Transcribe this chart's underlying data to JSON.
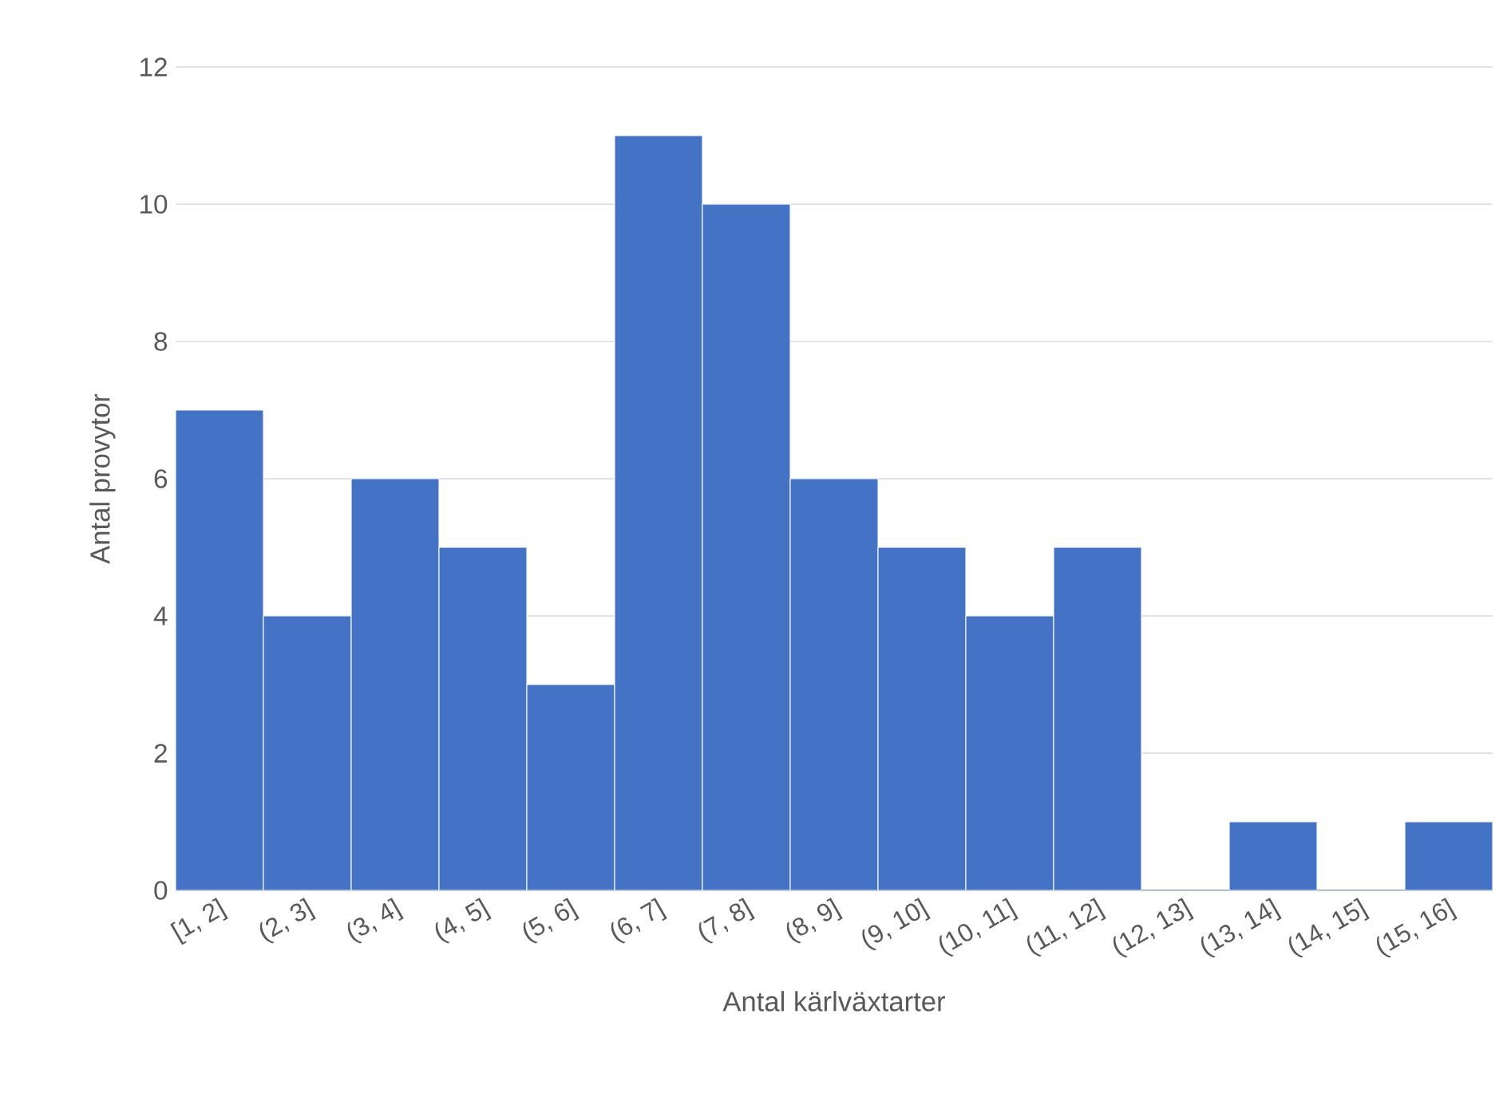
{
  "chart_data": {
    "type": "bar",
    "xlabel": "Antal kärlväxtarter",
    "ylabel": "Antal provytor",
    "categories": [
      "[1, 2]",
      "(2, 3]",
      "(3, 4]",
      "(4, 5]",
      "(5, 6]",
      "(6, 7]",
      "(7, 8]",
      "(8, 9]",
      "(9, 10]",
      "(10, 11]",
      "(11, 12]",
      "(12, 13]",
      "(13, 14]",
      "(14, 15]",
      "(15, 16]"
    ],
    "values": [
      7,
      4,
      6,
      5,
      3,
      11,
      10,
      6,
      5,
      4,
      5,
      0,
      1,
      0,
      1
    ],
    "color": "#4472c4",
    "ylim": [
      0,
      12
    ],
    "yticks": [
      0,
      2,
      4,
      6,
      8,
      10,
      12
    ],
    "grid": "y"
  }
}
